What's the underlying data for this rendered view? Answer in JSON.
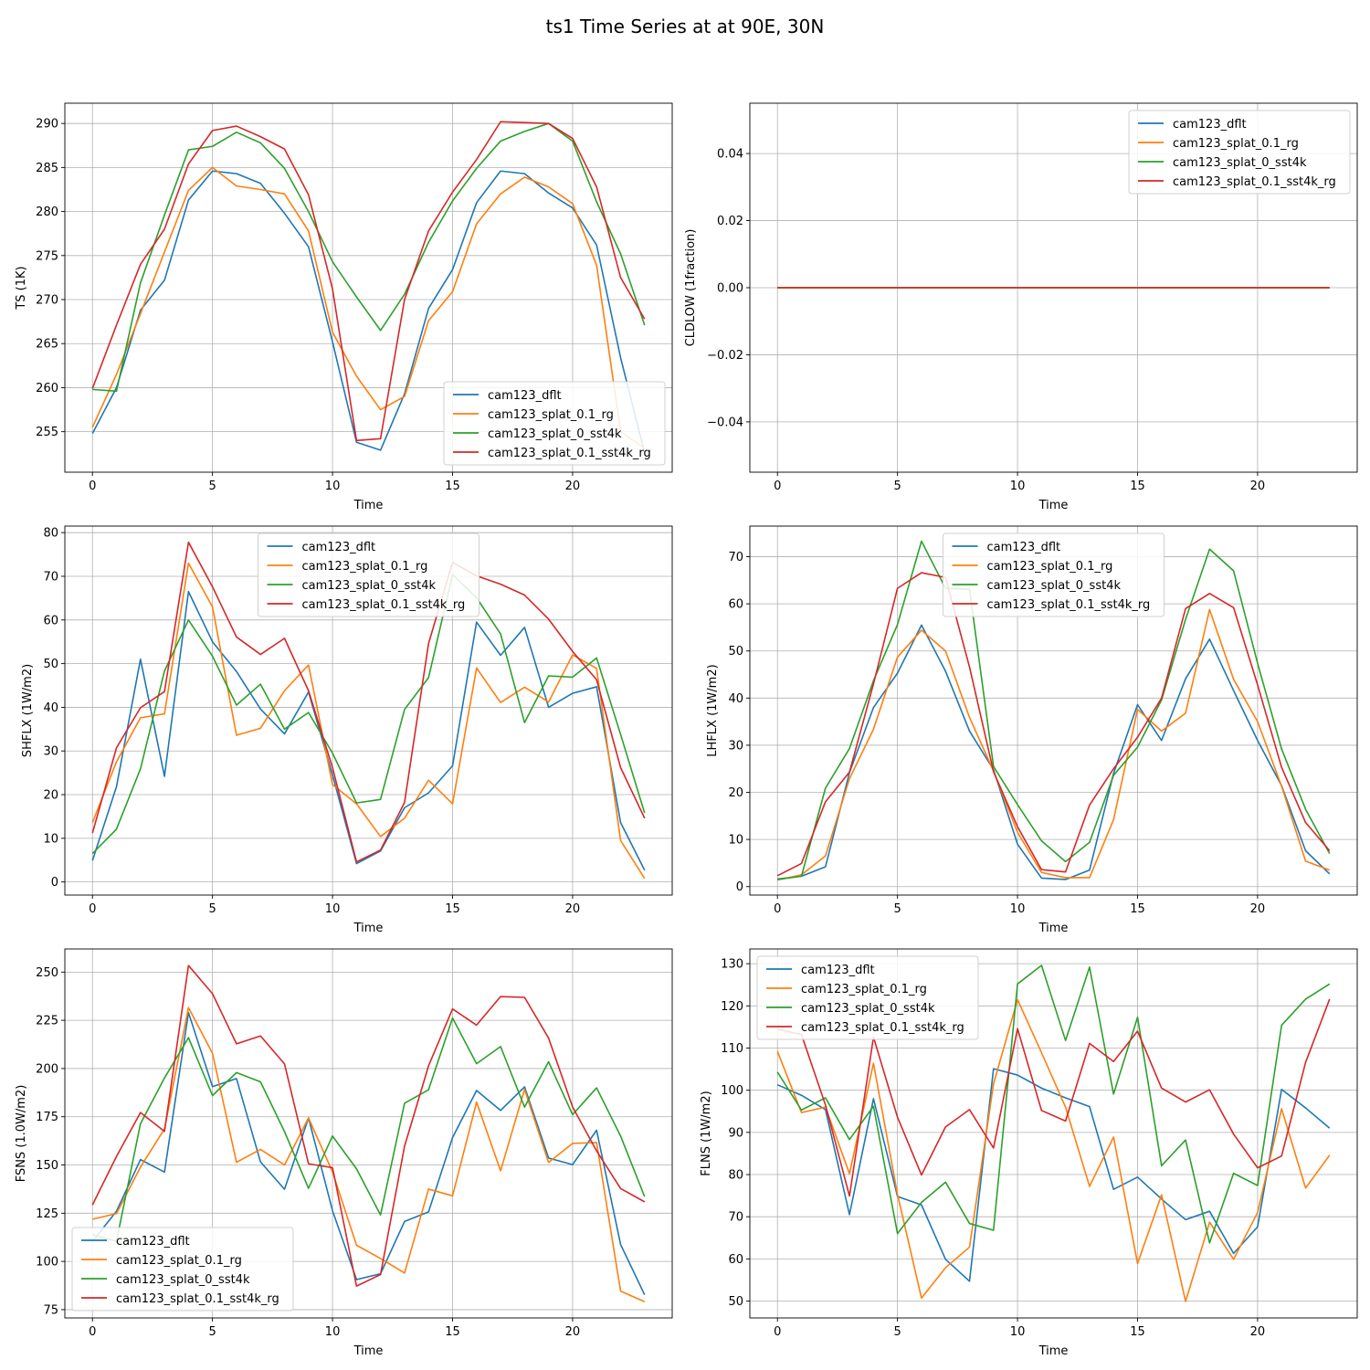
{
  "figure": {
    "title": "ts1 Time Series at at 90E, 30N"
  },
  "chart_data": [
    {
      "type": "line",
      "xlabel": "Time",
      "ylabel": "TS (1K)",
      "xlim": [
        -1.15,
        24.15
      ],
      "ylim": [
        250.4,
        292.3
      ],
      "xticks": [
        0,
        5,
        10,
        15,
        20
      ],
      "yticks": [
        255,
        260,
        265,
        270,
        275,
        280,
        285,
        290
      ],
      "grid": true,
      "legend": "lower-right",
      "x": [
        0,
        1,
        2,
        3,
        4,
        5,
        6,
        7,
        8,
        9,
        10,
        11,
        12,
        13,
        14,
        15,
        16,
        17,
        18,
        19,
        20,
        21,
        22,
        23
      ],
      "series": [
        {
          "name": "cam123_dflt",
          "color": "#1f77b4",
          "values": [
            254.8,
            260.0,
            268.8,
            272.2,
            281.3,
            284.6,
            284.3,
            283.2,
            279.8,
            276.0,
            265.2,
            253.8,
            252.9,
            259.3,
            269.0,
            273.4,
            281.0,
            284.6,
            284.3,
            282.1,
            280.4,
            276.2,
            263.4,
            252.6
          ]
        },
        {
          "name": "cam123_splat_0.1_rg",
          "color": "#ff7f0e",
          "values": [
            255.5,
            261.5,
            268.4,
            275.4,
            282.4,
            285.0,
            282.9,
            282.5,
            282.0,
            277.8,
            266.3,
            261.3,
            257.5,
            259.0,
            267.6,
            270.9,
            278.6,
            282.0,
            283.9,
            282.8,
            280.9,
            273.9,
            255.0,
            253.1
          ]
        },
        {
          "name": "cam123_splat_0_sst4k",
          "color": "#2ca02c",
          "values": [
            259.8,
            259.6,
            271.9,
            279.6,
            287.0,
            287.4,
            289.0,
            287.8,
            284.9,
            280.0,
            274.3,
            270.3,
            266.5,
            270.6,
            276.5,
            281.2,
            284.9,
            288.0,
            289.1,
            290.0,
            288.0,
            281.1,
            275.2,
            267.1
          ]
        },
        {
          "name": "cam123_splat_0.1_sst4k_rg",
          "color": "#d62728",
          "values": [
            259.9,
            267.1,
            274.0,
            278.0,
            285.4,
            289.2,
            289.7,
            288.5,
            287.1,
            281.9,
            271.2,
            254.0,
            254.2,
            270.0,
            277.8,
            282.2,
            285.9,
            290.2,
            290.1,
            290.0,
            288.3,
            282.8,
            272.5,
            267.8
          ]
        }
      ]
    },
    {
      "type": "line",
      "xlabel": "Time",
      "ylabel": "CLDLOW (1fraction)",
      "xlim": [
        -1.15,
        24.15
      ],
      "ylim": [
        -0.055,
        0.055
      ],
      "xticks": [
        0,
        5,
        10,
        15,
        20
      ],
      "yticks": [
        -0.04,
        -0.02,
        0.0,
        0.02,
        0.04
      ],
      "ytick_labels": [
        "−0.04",
        "−0.02",
        "0.00",
        "0.02",
        "0.04"
      ],
      "grid": true,
      "legend": "upper-right",
      "x": [
        0,
        1,
        2,
        3,
        4,
        5,
        6,
        7,
        8,
        9,
        10,
        11,
        12,
        13,
        14,
        15,
        16,
        17,
        18,
        19,
        20,
        21,
        22,
        23
      ],
      "series": [
        {
          "name": "cam123_dflt",
          "color": "#1f77b4",
          "values": [
            0,
            0,
            0,
            0,
            0,
            0,
            0,
            0,
            0,
            0,
            0,
            0,
            0,
            0,
            0,
            0,
            0,
            0,
            0,
            0,
            0,
            0,
            0,
            0
          ]
        },
        {
          "name": "cam123_splat_0.1_rg",
          "color": "#ff7f0e",
          "values": [
            0,
            0,
            0,
            0,
            0,
            0,
            0,
            0,
            0,
            0,
            0,
            0,
            0,
            0,
            0,
            0,
            0,
            0,
            0,
            0,
            0,
            0,
            0,
            0
          ]
        },
        {
          "name": "cam123_splat_0_sst4k",
          "color": "#2ca02c",
          "values": [
            0,
            0,
            0,
            0,
            0,
            0,
            0,
            0,
            0,
            0,
            0,
            0,
            0,
            0,
            0,
            0,
            0,
            0,
            0,
            0,
            0,
            0,
            0,
            0
          ]
        },
        {
          "name": "cam123_splat_0.1_sst4k_rg",
          "color": "#d62728",
          "values": [
            0,
            0,
            0,
            0,
            0,
            0,
            0,
            0,
            0,
            0,
            0,
            0,
            0,
            0,
            0,
            0,
            0,
            0,
            0,
            0,
            0,
            0,
            0,
            0
          ]
        }
      ]
    },
    {
      "type": "line",
      "xlabel": "Time",
      "ylabel": "SHFLX (1W/m2)",
      "xlim": [
        -1.15,
        24.15
      ],
      "ylim": [
        -3.0,
        81.5
      ],
      "xticks": [
        0,
        5,
        10,
        15,
        20
      ],
      "yticks": [
        0,
        10,
        20,
        30,
        40,
        50,
        60,
        70,
        80
      ],
      "grid": true,
      "legend": "upper-center",
      "x": [
        0,
        1,
        2,
        3,
        4,
        5,
        6,
        7,
        8,
        9,
        10,
        11,
        12,
        13,
        14,
        15,
        16,
        17,
        18,
        19,
        20,
        21,
        22,
        23
      ],
      "series": [
        {
          "name": "cam123_dflt",
          "color": "#1f77b4",
          "values": [
            4.9,
            21.8,
            51.0,
            24.2,
            66.5,
            55.0,
            48.2,
            39.6,
            33.9,
            43.5,
            24.5,
            4.2,
            7.1,
            17.0,
            20.4,
            26.6,
            59.5,
            51.9,
            58.3,
            40.0,
            43.2,
            44.7,
            13.6,
            2.7
          ]
        },
        {
          "name": "cam123_splat_0.1_rg",
          "color": "#ff7f0e",
          "values": [
            13.6,
            27.5,
            37.6,
            38.5,
            73.0,
            63.0,
            33.6,
            35.2,
            43.8,
            49.7,
            22.3,
            17.9,
            10.4,
            14.6,
            23.3,
            17.9,
            49.0,
            41.1,
            44.6,
            41.2,
            52.0,
            48.9,
            9.5,
            0.8
          ]
        },
        {
          "name": "cam123_splat_0_sst4k",
          "color": "#2ca02c",
          "values": [
            6.5,
            12.1,
            25.9,
            48.3,
            60.0,
            51.7,
            40.5,
            45.3,
            35.0,
            38.8,
            29.5,
            18.1,
            18.9,
            39.5,
            46.8,
            70.4,
            65.1,
            56.8,
            36.5,
            47.2,
            46.9,
            51.3,
            33.8,
            15.8
          ]
        },
        {
          "name": "cam123_splat_0.1_sst4k_rg",
          "color": "#d62728",
          "values": [
            11.2,
            30.7,
            39.9,
            43.6,
            77.8,
            67.6,
            56.1,
            52.1,
            55.8,
            43.8,
            26.2,
            4.6,
            7.3,
            18.2,
            54.6,
            73.2,
            70.1,
            68.2,
            65.7,
            60.2,
            52.8,
            46.3,
            26.2,
            14.6
          ]
        }
      ]
    },
    {
      "type": "line",
      "xlabel": "Time",
      "ylabel": "LHFLX (1W/m2)",
      "xlim": [
        -1.15,
        24.15
      ],
      "ylim": [
        -1.8,
        76.5
      ],
      "xticks": [
        0,
        5,
        10,
        15,
        20
      ],
      "yticks": [
        0,
        10,
        20,
        30,
        40,
        50,
        60,
        70
      ],
      "grid": true,
      "legend": "upper-center",
      "x": [
        0,
        1,
        2,
        3,
        4,
        5,
        6,
        7,
        8,
        9,
        10,
        11,
        12,
        13,
        14,
        15,
        16,
        17,
        18,
        19,
        20,
        21,
        22,
        23
      ],
      "series": [
        {
          "name": "cam123_dflt",
          "color": "#1f77b4",
          "values": [
            1.6,
            2.2,
            4.2,
            24.2,
            38.0,
            45.3,
            55.5,
            45.7,
            33.0,
            24.8,
            9.0,
            1.8,
            1.5,
            3.5,
            24.0,
            38.6,
            31.0,
            44.1,
            52.5,
            41.6,
            31.0,
            21.4,
            7.6,
            2.7
          ]
        },
        {
          "name": "cam123_splat_0.1_rg",
          "color": "#ff7f0e",
          "values": [
            1.4,
            2.5,
            6.5,
            22.9,
            33.4,
            48.7,
            54.4,
            50.0,
            35.9,
            24.5,
            11.5,
            3.0,
            1.9,
            1.9,
            14.2,
            37.6,
            33.0,
            36.8,
            58.8,
            44.0,
            35.0,
            21.3,
            5.4,
            3.5
          ]
        },
        {
          "name": "cam123_splat_0_sst4k",
          "color": "#2ca02c",
          "values": [
            1.5,
            2.2,
            20.9,
            29.3,
            43.7,
            55.6,
            73.3,
            63.3,
            63.1,
            25.5,
            17.4,
            9.7,
            5.3,
            9.4,
            23.6,
            29.6,
            39.6,
            56.7,
            71.6,
            67.0,
            47.4,
            29.2,
            16.4,
            7.0
          ]
        },
        {
          "name": "cam123_splat_0.1_sst4k_rg",
          "color": "#d62728",
          "values": [
            2.3,
            4.9,
            18.0,
            24.3,
            43.0,
            63.3,
            66.6,
            65.6,
            46.6,
            24.4,
            12.7,
            3.6,
            3.1,
            17.3,
            25.0,
            31.7,
            40.0,
            59.0,
            62.2,
            59.2,
            42.8,
            25.3,
            13.6,
            7.6
          ]
        }
      ]
    },
    {
      "type": "line",
      "xlabel": "Time",
      "ylabel": "FSNS (1.0W/m2)",
      "xlim": [
        -1.15,
        24.15
      ],
      "ylim": [
        70.7,
        262.0
      ],
      "xticks": [
        0,
        5,
        10,
        15,
        20
      ],
      "yticks": [
        75,
        100,
        125,
        150,
        175,
        200,
        225,
        250
      ],
      "grid": true,
      "legend": "lower-left",
      "x": [
        0,
        1,
        2,
        3,
        4,
        5,
        6,
        7,
        8,
        9,
        10,
        11,
        12,
        13,
        14,
        15,
        16,
        17,
        18,
        19,
        20,
        21,
        22,
        23
      ],
      "series": [
        {
          "name": "cam123_dflt",
          "color": "#1f77b4",
          "values": [
            110.4,
            126.0,
            152.8,
            146.3,
            229.0,
            190.6,
            194.8,
            151.6,
            137.4,
            174.4,
            126.3,
            90.6,
            93.6,
            120.7,
            125.7,
            164.2,
            188.6,
            178.3,
            190.5,
            153.6,
            150.2,
            168.0,
            108.8,
            82.7
          ]
        },
        {
          "name": "cam123_splat_0.1_rg",
          "color": "#ff7f0e",
          "values": [
            121.9,
            124.8,
            148.9,
            168.7,
            231.6,
            207.9,
            151.4,
            158.1,
            150.0,
            174.4,
            146.4,
            108.4,
            101.5,
            94.0,
            137.5,
            134.0,
            182.6,
            147.0,
            189.2,
            151.3,
            161.2,
            161.6,
            84.6,
            79.1
          ]
        },
        {
          "name": "cam123_splat_0_sst4k",
          "color": "#2ca02c",
          "values": [
            114.0,
            110.4,
            171.4,
            195.1,
            216.0,
            186.0,
            197.9,
            193.1,
            167.3,
            137.9,
            165.0,
            148.0,
            124.1,
            182.0,
            189.0,
            226.2,
            202.5,
            211.4,
            180.0,
            203.5,
            176.1,
            190.0,
            165.0,
            133.6
          ]
        },
        {
          "name": "cam123_splat_0.1_sst4k_rg",
          "color": "#d62728",
          "values": [
            129.3,
            154.4,
            177.2,
            167.4,
            253.4,
            238.8,
            212.8,
            216.9,
            202.4,
            150.6,
            148.6,
            87.2,
            93.2,
            159.7,
            201.4,
            230.9,
            222.5,
            237.3,
            236.9,
            215.8,
            180.1,
            157.3,
            137.8,
            130.9
          ]
        }
      ]
    },
    {
      "type": "line",
      "xlabel": "Time",
      "ylabel": "FLNS (1W/m2)",
      "xlim": [
        -1.15,
        24.15
      ],
      "ylim": [
        46.0,
        133.5
      ],
      "xticks": [
        0,
        5,
        10,
        15,
        20
      ],
      "yticks": [
        50,
        60,
        70,
        80,
        90,
        100,
        110,
        120,
        130
      ],
      "grid": true,
      "legend": "upper-left",
      "x": [
        0,
        1,
        2,
        3,
        4,
        5,
        6,
        7,
        8,
        9,
        10,
        11,
        12,
        13,
        14,
        15,
        16,
        17,
        18,
        19,
        20,
        21,
        22,
        23
      ],
      "series": [
        {
          "name": "cam123_dflt",
          "color": "#1f77b4",
          "values": [
            101.3,
            98.8,
            95.4,
            70.5,
            98.0,
            74.8,
            72.8,
            59.9,
            54.7,
            105.1,
            103.6,
            100.5,
            98.2,
            96.1,
            76.5,
            79.4,
            74.2,
            69.3,
            71.3,
            61.3,
            67.6,
            100.2,
            95.8,
            91.0
          ]
        },
        {
          "name": "cam123_splat_0.1_rg",
          "color": "#ff7f0e",
          "values": [
            109.2,
            94.7,
            96.0,
            80.2,
            106.4,
            75.3,
            50.7,
            57.9,
            62.8,
            101.5,
            121.5,
            108.9,
            96.0,
            77.2,
            88.9,
            58.9,
            75.2,
            49.9,
            68.7,
            59.9,
            71.0,
            95.6,
            76.8,
            84.6
          ]
        },
        {
          "name": "cam123_splat_0_sst4k",
          "color": "#2ca02c",
          "values": [
            104.3,
            95.3,
            98.2,
            88.3,
            96.2,
            66.0,
            73.4,
            78.2,
            68.4,
            66.8,
            125.2,
            129.6,
            111.8,
            129.2,
            99.1,
            117.3,
            82.1,
            88.2,
            63.8,
            80.3,
            77.4,
            115.4,
            121.6,
            125.2
          ]
        },
        {
          "name": "cam123_splat_0.1_sst4k_rg",
          "color": "#d62728",
          "values": [
            114.5,
            113.2,
            96.5,
            74.9,
            112.6,
            93.6,
            79.9,
            91.3,
            95.4,
            86.3,
            114.6,
            95.2,
            92.7,
            111.1,
            106.8,
            114.0,
            100.5,
            97.2,
            100.1,
            89.6,
            81.6,
            84.4,
            106.6,
            121.6
          ]
        }
      ]
    }
  ]
}
